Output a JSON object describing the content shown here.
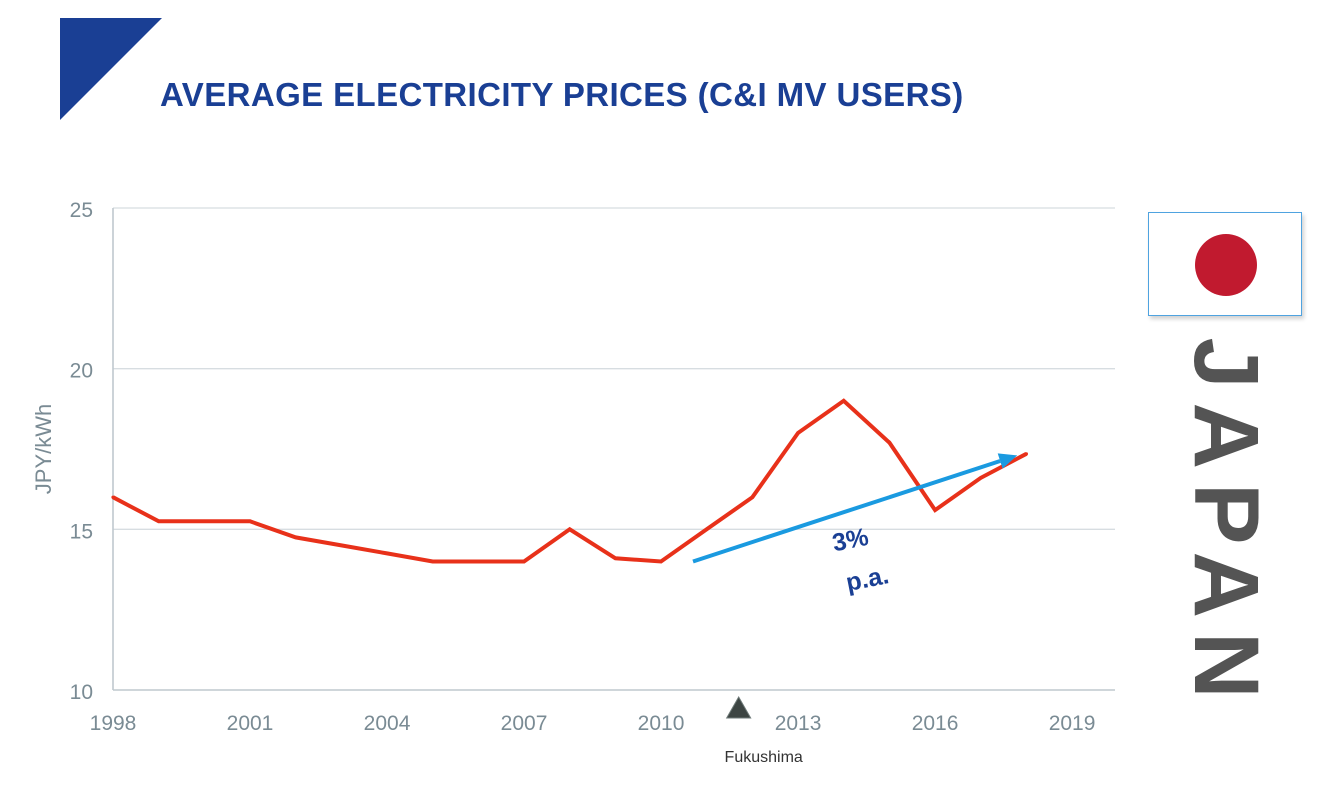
{
  "header": {
    "title": "AVERAGE ELECTRICITY PRICES (C&I MV USERS)",
    "accent_color": "#1a3f94"
  },
  "side_panel": {
    "country": "JAPAN",
    "flag_icon": "japan-flag-icon",
    "flag_disc_color": "#c11a2f"
  },
  "chart_data": {
    "type": "line",
    "title": "",
    "xlabel": "",
    "ylabel": "JPY/kWh",
    "xlim": [
      1998,
      2019.5
    ],
    "ylim": [
      10,
      25
    ],
    "x_ticks": [
      "1998",
      "2001",
      "2004",
      "2007",
      "2010",
      "2013",
      "2016",
      "2019"
    ],
    "y_ticks": [
      "10",
      "15",
      "20",
      "25"
    ],
    "grid": "horizontal",
    "series": [
      {
        "color": "#e8311a",
        "x": [
          1998,
          1999,
          2000,
          2001,
          2002,
          2003,
          2004,
          2005,
          2006,
          2007,
          2008,
          2009,
          2010,
          2011,
          2012,
          2013,
          2014,
          2015,
          2016,
          2017,
          2018
        ],
        "y": [
          16.0,
          15.25,
          15.25,
          15.25,
          14.75,
          14.5,
          14.25,
          14.0,
          14.0,
          14.0,
          15.0,
          14.1,
          14.0,
          15.0,
          16.0,
          18.0,
          19.0,
          17.7,
          15.6,
          16.6,
          17.35
        ]
      }
    ],
    "trend_arrow": {
      "color": "#1a9ae0",
      "from": [
        2010.7,
        14.0
      ],
      "to": [
        2017.8,
        17.3
      ],
      "label_line1": "3%",
      "label_line2": "p.a."
    },
    "event_marker": {
      "x": 2011.7,
      "label": "Fukushima",
      "icon": "triangle-marker-icon",
      "color": "#3d4543"
    }
  }
}
